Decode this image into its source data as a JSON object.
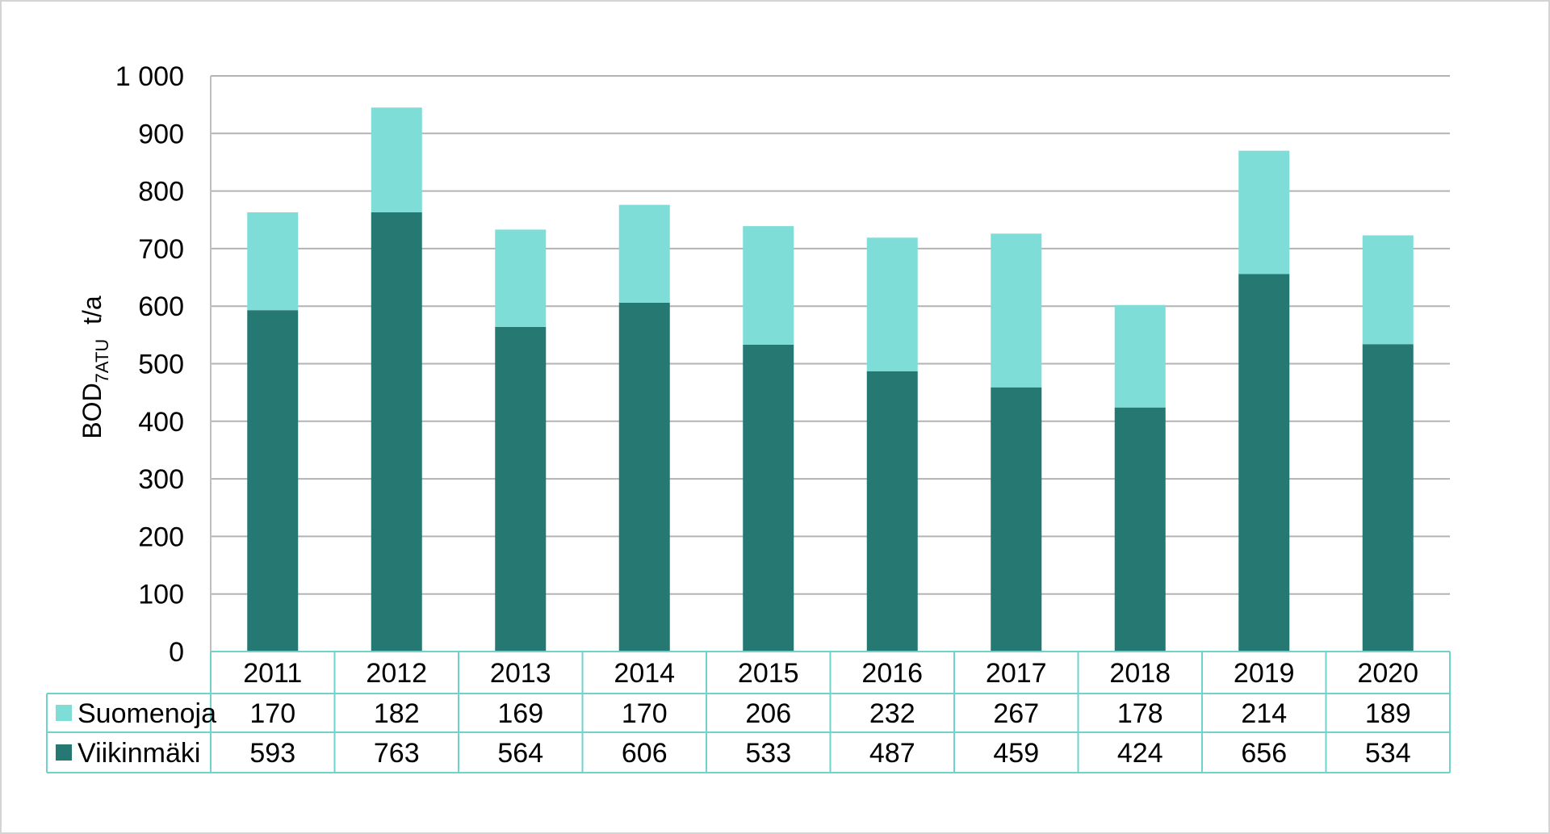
{
  "chart_data": {
    "type": "bar",
    "stacked": true,
    "categories": [
      "2011",
      "2012",
      "2013",
      "2014",
      "2015",
      "2016",
      "2017",
      "2018",
      "2019",
      "2020"
    ],
    "series": [
      {
        "name": "Viikinmäki",
        "values": [
          593,
          763,
          564,
          606,
          533,
          487,
          459,
          424,
          656,
          534
        ],
        "color": "#267873"
      },
      {
        "name": "Suomenoja",
        "values": [
          170,
          182,
          169,
          170,
          206,
          232,
          267,
          178,
          214,
          189
        ],
        "color": "#7fddd7"
      }
    ],
    "ylabel": {
      "main": "BOD",
      "subscript": "7ATU",
      "unit": "t/a"
    },
    "ylim": [
      0,
      1000
    ],
    "yticks": [
      0,
      100,
      200,
      300,
      400,
      500,
      600,
      700,
      800,
      900,
      1000
    ],
    "ytick_labels": [
      "0",
      "100",
      "200",
      "300",
      "400",
      "500",
      "600",
      "700",
      "800",
      "900",
      "1 000"
    ],
    "grid": true,
    "legend": "data-table",
    "data_table_rows": [
      "Suomenoja",
      "Viikinmäki"
    ],
    "table_border_color": "#6fd3cd",
    "grid_color": "#b3b3b3"
  }
}
